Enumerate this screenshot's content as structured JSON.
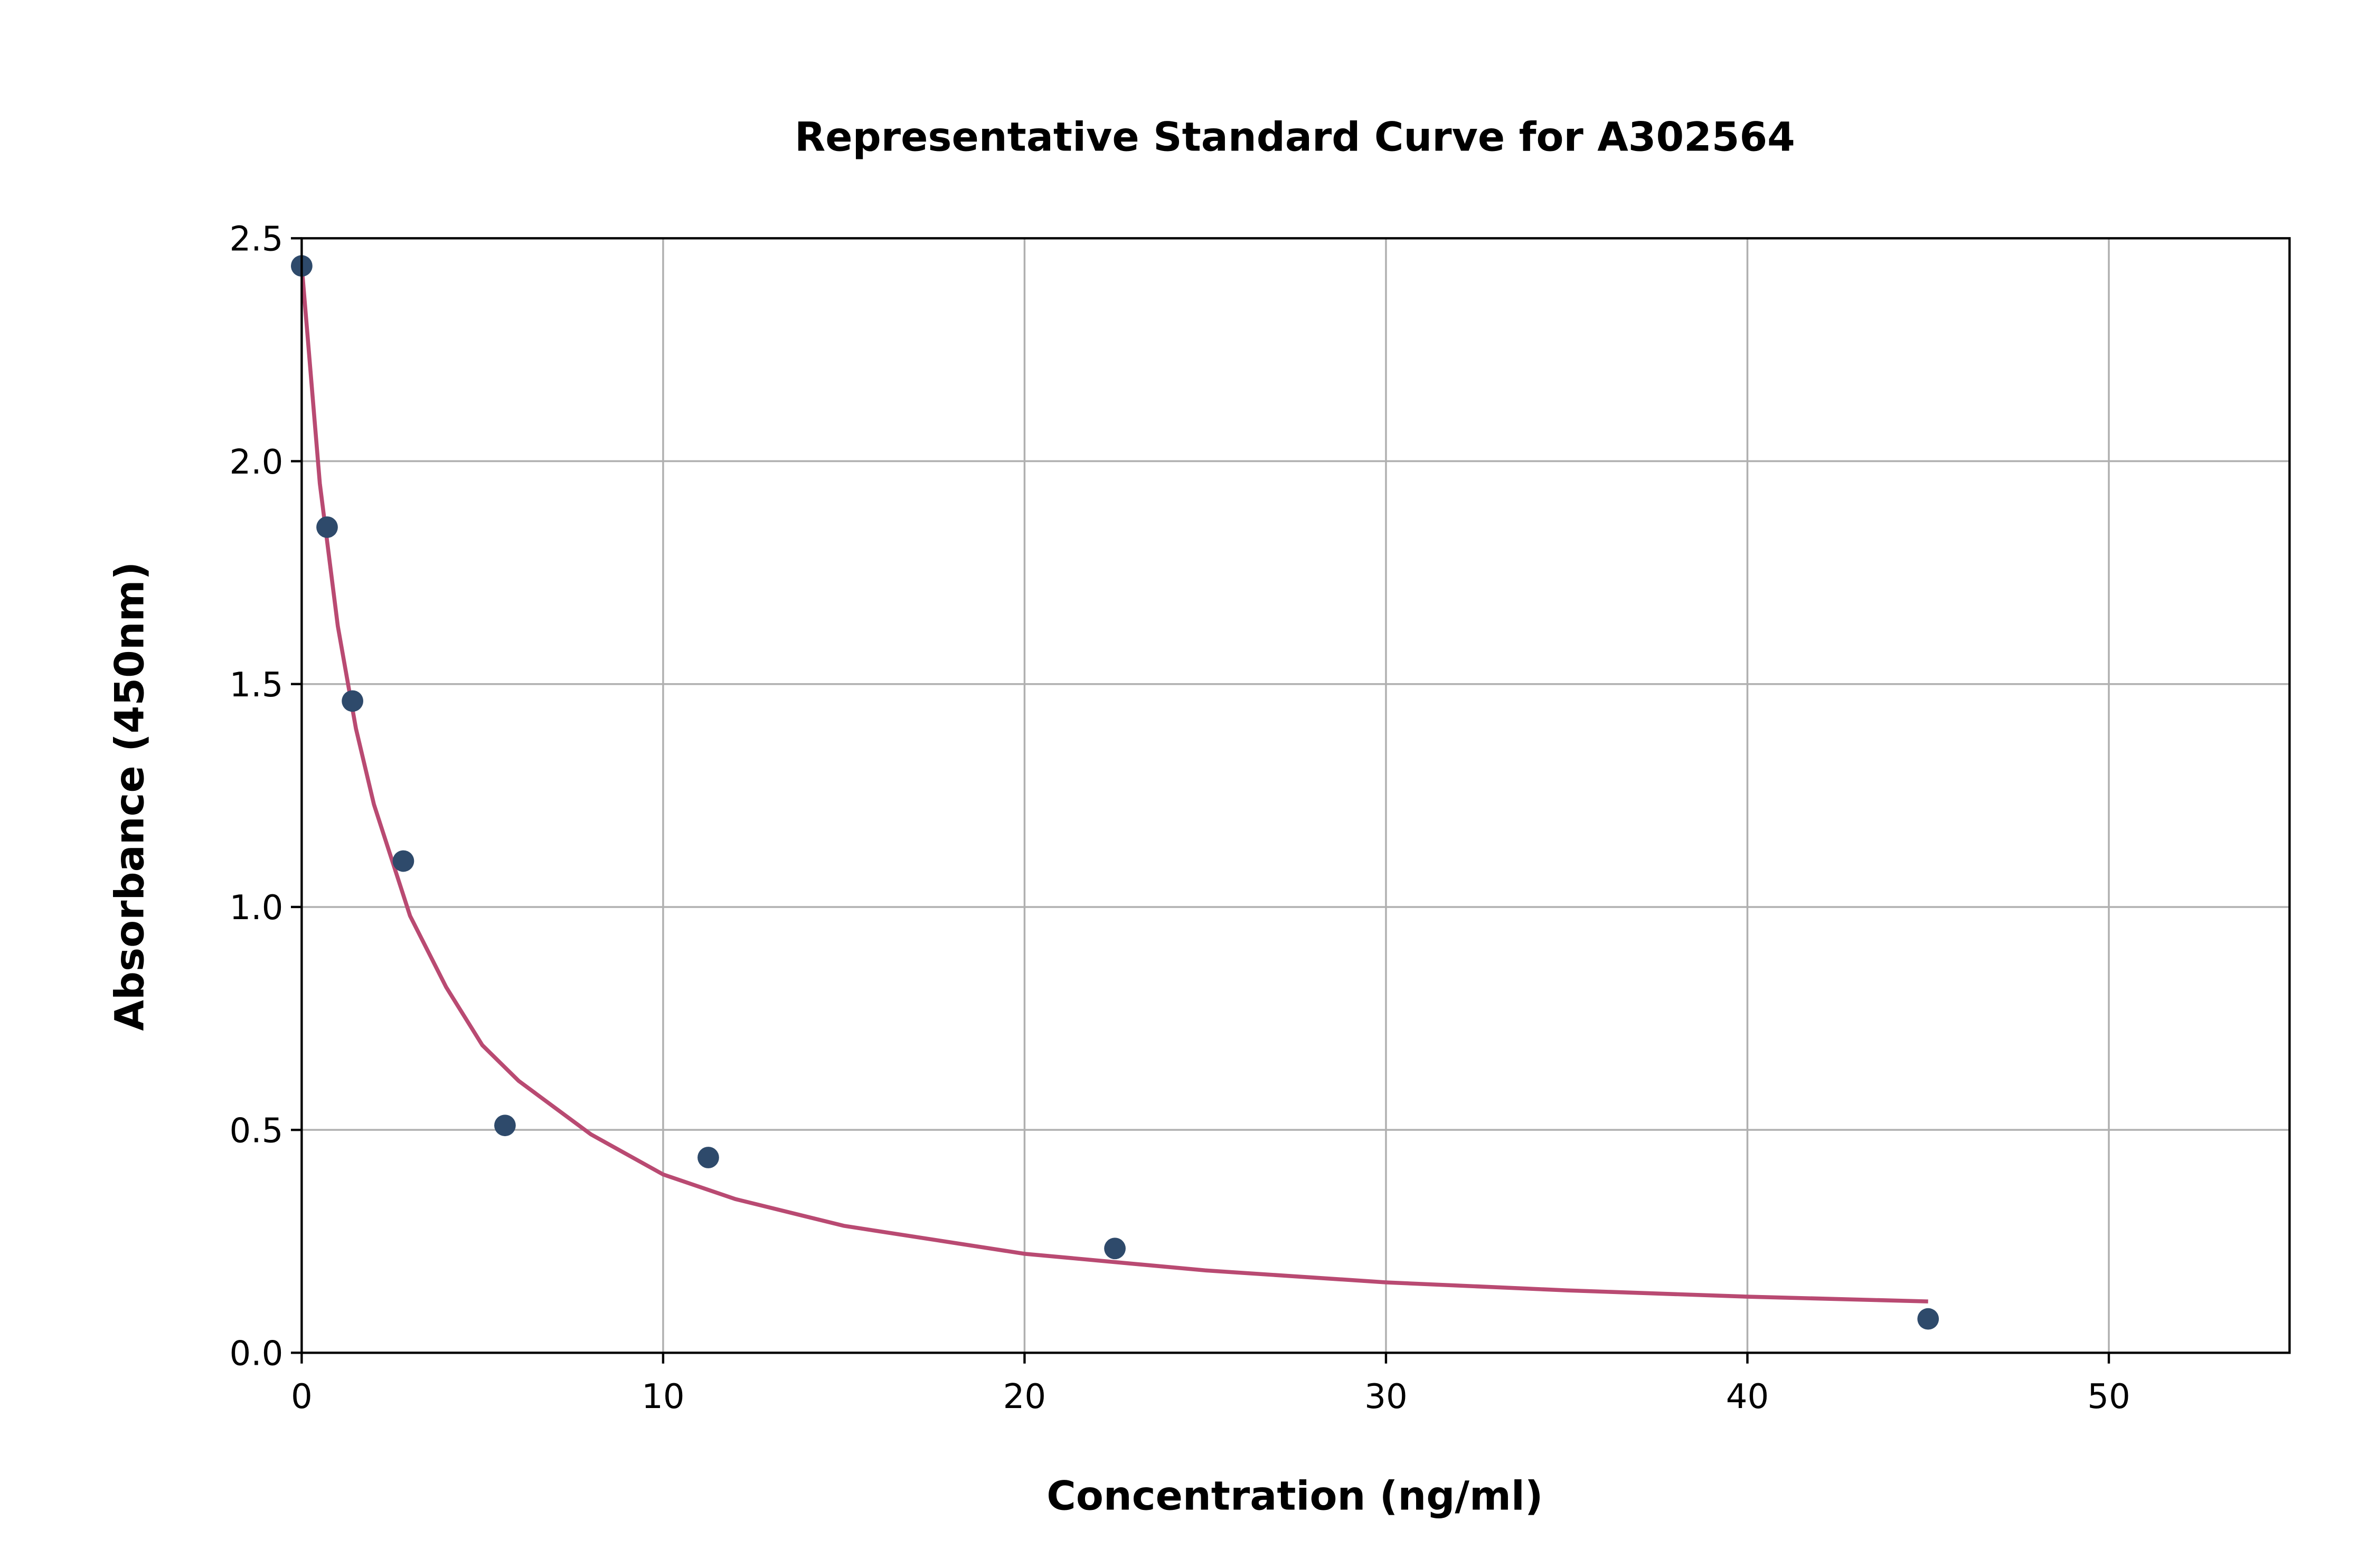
{
  "chart_data": {
    "type": "scatter",
    "title": "Representative Standard Curve for A302564",
    "xlabel": "Concentration (ng/ml)",
    "ylabel": "Absorbance (450nm)",
    "xlim": [
      0,
      55
    ],
    "ylim": [
      0,
      2.5
    ],
    "xticks": [
      "0",
      "10",
      "20",
      "30",
      "40",
      "50"
    ],
    "yticks": [
      "0.0",
      "0.5",
      "1.0",
      "1.5",
      "2.0",
      "2.5"
    ],
    "grid": true,
    "points": {
      "x": [
        0,
        0.703,
        1.406,
        2.813,
        5.625,
        11.25,
        22.5,
        45
      ],
      "y": [
        2.438,
        1.852,
        1.462,
        1.103,
        0.51,
        0.438,
        0.234,
        0.076
      ],
      "color": "#2e4a6b"
    },
    "fit_curve": {
      "x": [
        0,
        0.5,
        1,
        1.5,
        2,
        3,
        4,
        5,
        6,
        8,
        10,
        12,
        15,
        20,
        25,
        30,
        35,
        40,
        45
      ],
      "y": [
        2.44,
        1.95,
        1.63,
        1.4,
        1.23,
        0.98,
        0.82,
        0.69,
        0.61,
        0.49,
        0.4,
        0.345,
        0.285,
        0.222,
        0.185,
        0.158,
        0.14,
        0.126,
        0.115
      ],
      "color": "#b94a72"
    }
  }
}
